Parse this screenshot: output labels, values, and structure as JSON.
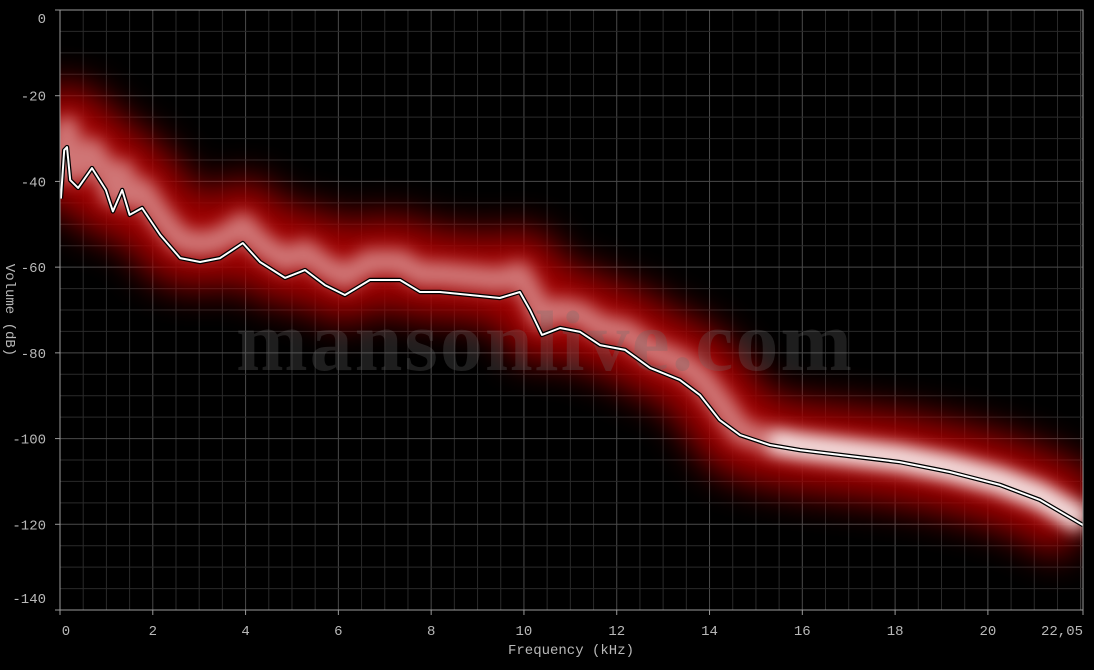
{
  "chart_data": {
    "type": "line",
    "xlabel": "Frequency (kHz)",
    "ylabel": "Volume (dB)",
    "xlim": [
      0,
      22.05
    ],
    "ylim": [
      -140,
      0
    ],
    "x_ticks": [
      "0",
      "2",
      "4",
      "6",
      "8",
      "10",
      "12",
      "14",
      "16",
      "18",
      "20",
      "22,05"
    ],
    "x_tick_values": [
      0,
      2,
      4,
      6,
      8,
      10,
      12,
      14,
      16,
      18,
      20,
      22.05
    ],
    "y_ticks": [
      0,
      -20,
      -40,
      -60,
      -80,
      -100,
      -120,
      -140
    ],
    "grid": true,
    "background": "#000000",
    "band_color": "#b00000",
    "line_color": "#ffffff",
    "watermark": "mansonlive.com",
    "series": [
      {
        "x": [
          0.02,
          0.09,
          0.15,
          0.22,
          0.39,
          0.69,
          0.99,
          1.14,
          1.34,
          1.5,
          1.77,
          2.16,
          2.59,
          3.02,
          3.45,
          3.94,
          4.31,
          4.85,
          5.28,
          5.71,
          6.14,
          6.68,
          7.33,
          7.76,
          8.19,
          8.84,
          9.48,
          9.91,
          10.13,
          10.39,
          10.78,
          11.21,
          11.64,
          12.18,
          12.72,
          13.36,
          13.79,
          14.22,
          14.66,
          15.3,
          15.95,
          17.03,
          18.1,
          19.18,
          20.26,
          21.12,
          22.05
        ],
        "y": [
          -44,
          -32.7,
          -32,
          -39.7,
          -41.5,
          -36.9,
          -42,
          -47,
          -42,
          -47.8,
          -46.2,
          -52.5,
          -57.9,
          -58.8,
          -57.9,
          -54.4,
          -58.8,
          -62.5,
          -60.7,
          -64.2,
          -66.5,
          -63,
          -63,
          -65.8,
          -65.8,
          -66.5,
          -67.2,
          -65.8,
          -70,
          -75.8,
          -74.2,
          -75.1,
          -78.2,
          -79.3,
          -83.5,
          -86.3,
          -89.8,
          -95.7,
          -99.2,
          -101.5,
          -102.7,
          -104.1,
          -105.5,
          -107.8,
          -110.8,
          -114.3,
          -120.2
        ]
      }
    ]
  }
}
